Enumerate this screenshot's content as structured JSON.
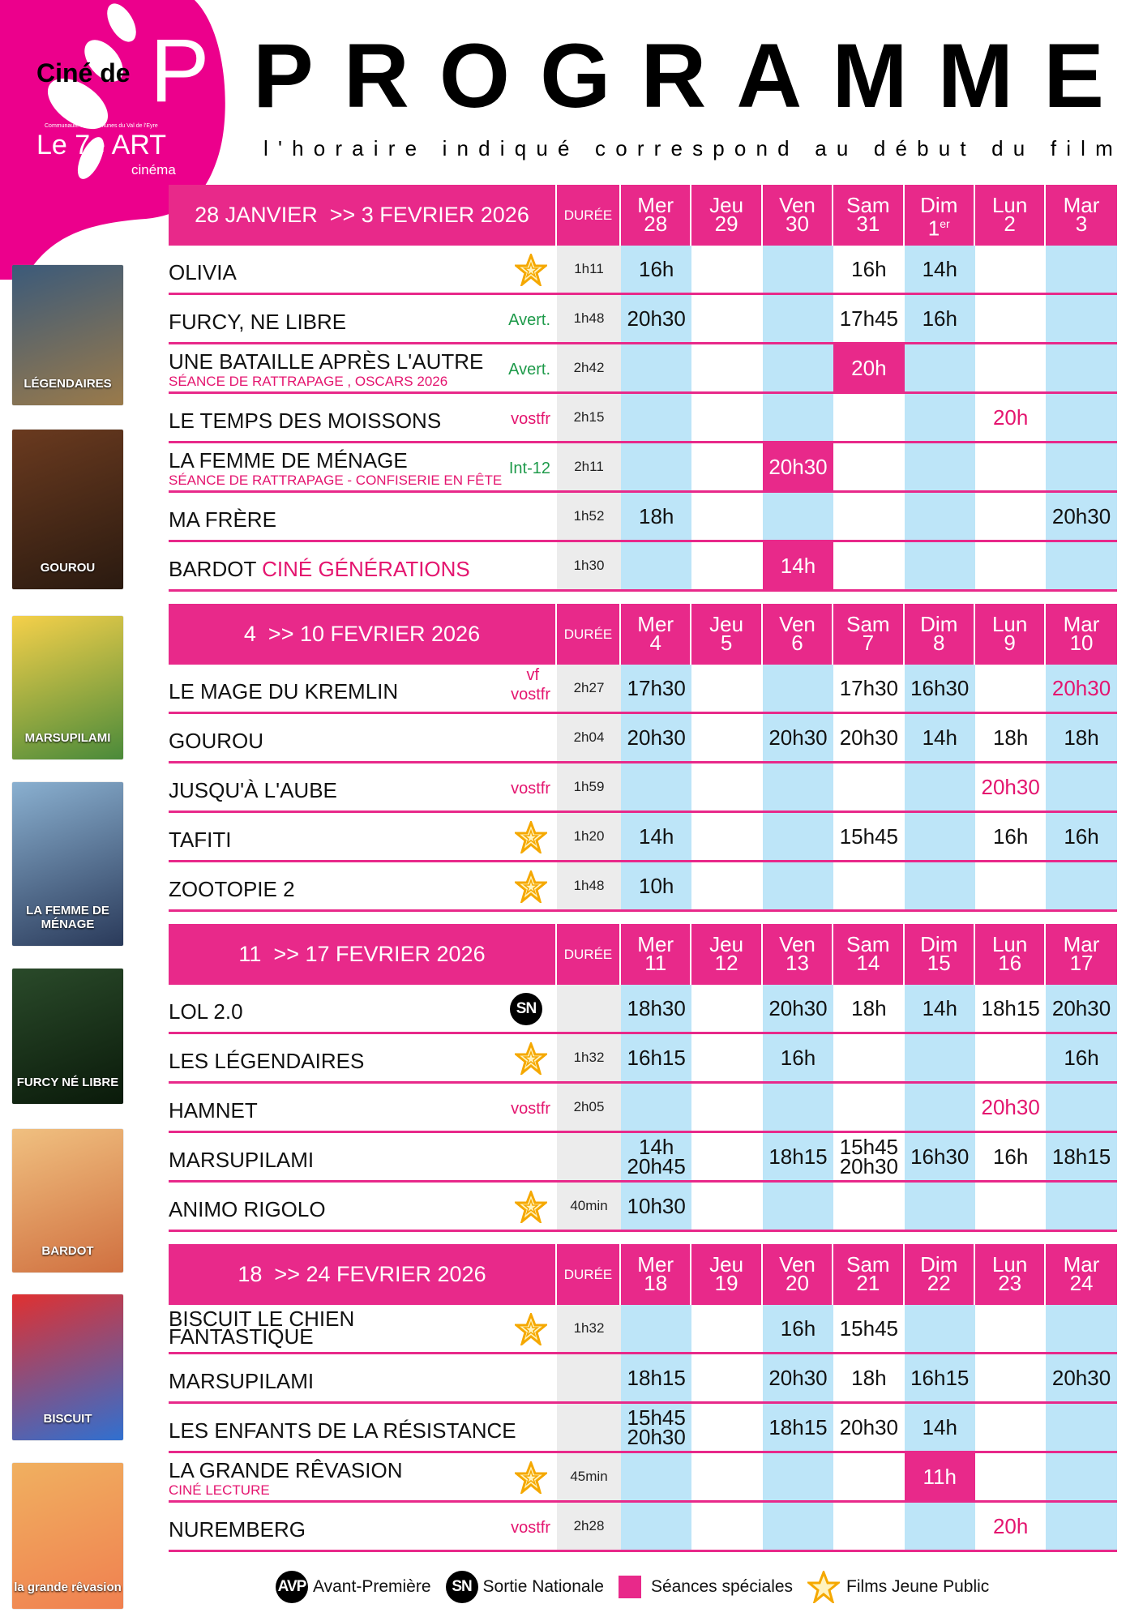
{
  "logo": {
    "line1": "Ciné de",
    "line2": "Communauté de Communes du Val de l'Eyre",
    "line3": "Le 7e ART",
    "line4": "cinéma",
    "color": "#ec008c"
  },
  "header": {
    "title": "PROGRAMME",
    "subtitle": "l'horaire indiqué correspond au début du film"
  },
  "colors": {
    "accent": "#e8298a",
    "blue_col": "#bde5f8",
    "duration_col": "#ececec",
    "green_tag": "#1e9a4a",
    "pink_text": "#e4156f",
    "star": "#f5a800"
  },
  "posters": [
    {
      "text": "LÉGENDAIRES",
      "colors": [
        "#3b5a7a",
        "#9a7a4a"
      ]
    },
    {
      "text": "GOUROU",
      "colors": [
        "#6a3a1f",
        "#2a1a10"
      ]
    },
    {
      "text": "MARSUPILAMI",
      "colors": [
        "#f5d04a",
        "#4a8a3a"
      ]
    },
    {
      "text": "LA FEMME DE MÉNAGE",
      "colors": [
        "#8ab0d0",
        "#2a3a5a"
      ]
    },
    {
      "text": "FURCY NÉ LIBRE",
      "colors": [
        "#2a4a2a",
        "#0a1a0a"
      ]
    },
    {
      "text": "BARDOT",
      "colors": [
        "#f0c080",
        "#d07040"
      ]
    },
    {
      "text": "BISCUIT",
      "colors": [
        "#e03030",
        "#3070d0"
      ]
    },
    {
      "text": "la grande rêvasion",
      "colors": [
        "#f0b060",
        "#f08050"
      ]
    }
  ],
  "weeks": [
    {
      "title": "28 JANVIER  >> 3 FEVRIER 2026",
      "duree_label": "DURÉE",
      "days": [
        {
          "name": "Mer",
          "num": "28"
        },
        {
          "name": "Jeu",
          "num": "29"
        },
        {
          "name": "Ven",
          "num": "30"
        },
        {
          "name": "Sam",
          "num": "31"
        },
        {
          "name": "Dim",
          "num": "1",
          "sup": "er"
        },
        {
          "name": "Lun",
          "num": "2"
        },
        {
          "name": "Mar",
          "num": "3"
        }
      ],
      "films": [
        {
          "title": "OLIVIA",
          "icon": "star",
          "duree": "1h11",
          "times": [
            "16h",
            "",
            "",
            "16h",
            "14h",
            "",
            ""
          ]
        },
        {
          "title": "FURCY, NE LIBRE",
          "tag": "Avert.",
          "tag_type": "green",
          "duree": "1h48",
          "times": [
            "20h30",
            "",
            "",
            "17h45",
            "16h",
            "",
            ""
          ]
        },
        {
          "title": "UNE BATAILLE APRÈS L'AUTRE",
          "subtitle": "SÉANCE DE RATTRAPAGE , OSCARS 2026",
          "tag": "Avert.",
          "tag_type": "green",
          "duree": "2h42",
          "times": [
            "",
            "",
            "",
            {
              "t": "20h",
              "s": "sp"
            },
            "",
            "",
            ""
          ]
        },
        {
          "title": "LE TEMPS DES MOISSONS",
          "tag": "vostfr",
          "tag_type": "pink",
          "duree": "2h15",
          "times": [
            "",
            "",
            "",
            "",
            "",
            {
              "t": "20h",
              "s": "pk"
            },
            ""
          ]
        },
        {
          "title": "LA FEMME DE MÉNAGE",
          "subtitle": "SÉANCE DE RATTRAPAGE - CONFISERIE EN FÊTE",
          "tag": "Int-12",
          "tag_type": "green",
          "duree": "2h11",
          "times": [
            "",
            "",
            {
              "t": "20h30",
              "s": "sp"
            },
            "",
            "",
            "",
            ""
          ]
        },
        {
          "title": "MA FRÈRE",
          "duree": "1h52",
          "times": [
            "18h",
            "",
            "",
            "",
            "",
            "",
            "20h30"
          ]
        },
        {
          "title": "BARDOT",
          "title_extra": "CINÉ GÉNÉRATIONS",
          "duree": "1h30",
          "times": [
            "",
            "",
            {
              "t": "14h",
              "s": "sp"
            },
            "",
            "",
            "",
            ""
          ]
        }
      ]
    },
    {
      "title": "4  >> 10 FEVRIER 2026",
      "duree_label": "DURÉE",
      "days": [
        {
          "name": "Mer",
          "num": "4"
        },
        {
          "name": "Jeu",
          "num": "5"
        },
        {
          "name": "Ven",
          "num": "6"
        },
        {
          "name": "Sam",
          "num": "7"
        },
        {
          "name": "Dim",
          "num": "8"
        },
        {
          "name": "Lun",
          "num": "9"
        },
        {
          "name": "Mar",
          "num": "10"
        }
      ],
      "films": [
        {
          "title": "LE MAGE DU KREMLIN",
          "tag": "vf",
          "tag2": "vostfr",
          "tag_type": "pink",
          "duree": "2h27",
          "times": [
            "17h30",
            "",
            "",
            "17h30",
            "16h30",
            "",
            {
              "t": "20h30",
              "s": "pk"
            }
          ]
        },
        {
          "title": "GOUROU",
          "duree": "2h04",
          "times": [
            "20h30",
            "",
            "20h30",
            "20h30",
            "14h",
            "18h",
            "18h"
          ]
        },
        {
          "title": "JUSQU'À L'AUBE",
          "tag": "vostfr",
          "tag_type": "pink",
          "duree": "1h59",
          "times": [
            "",
            "",
            "",
            "",
            "",
            {
              "t": "20h30",
              "s": "pk"
            },
            ""
          ]
        },
        {
          "title": "TAFITI",
          "icon": "star",
          "duree": "1h20",
          "times": [
            "14h",
            "",
            "",
            "15h45",
            "",
            "16h",
            "16h"
          ]
        },
        {
          "title": "ZOOTOPIE 2",
          "icon": "star",
          "duree": "1h48",
          "times": [
            "10h",
            "",
            "",
            "",
            "",
            "",
            ""
          ]
        }
      ]
    },
    {
      "title": "11  >> 17 FEVRIER 2026",
      "duree_label": "DURÉE",
      "days": [
        {
          "name": "Mer",
          "num": "11"
        },
        {
          "name": "Jeu",
          "num": "12"
        },
        {
          "name": "Ven",
          "num": "13"
        },
        {
          "name": "Sam",
          "num": "14"
        },
        {
          "name": "Dim",
          "num": "15"
        },
        {
          "name": "Lun",
          "num": "16"
        },
        {
          "name": "Mar",
          "num": "17"
        }
      ],
      "films": [
        {
          "title": "LOL 2.0",
          "icon": "sn",
          "duree": "",
          "times": [
            "18h30",
            "",
            "20h30",
            "18h",
            "14h",
            "18h15",
            "20h30"
          ]
        },
        {
          "title": "LES LÉGENDAIRES",
          "icon": "star",
          "duree": "1h32",
          "times": [
            "16h15",
            "",
            "16h",
            "",
            "",
            "",
            "16h"
          ]
        },
        {
          "title": "HAMNET",
          "tag": "vostfr",
          "tag_type": "pink",
          "duree": "2h05",
          "times": [
            "",
            "",
            "",
            "",
            "",
            {
              "t": "20h30",
              "s": "pk"
            },
            ""
          ]
        },
        {
          "title": "MARSUPILAMI",
          "duree": "",
          "times": [
            [
              "14h",
              "20h45"
            ],
            "",
            "18h15",
            [
              "15h45",
              "20h30"
            ],
            "16h30",
            "16h",
            "18h15"
          ]
        },
        {
          "title": "ANIMO RIGOLO",
          "icon": "star",
          "duree": "40min",
          "times": [
            "10h30",
            "",
            "",
            "",
            "",
            "",
            ""
          ]
        }
      ]
    },
    {
      "title": "18  >> 24 FEVRIER 2026",
      "duree_label": "DURÉE",
      "days": [
        {
          "name": "Mer",
          "num": "18"
        },
        {
          "name": "Jeu",
          "num": "19"
        },
        {
          "name": "Ven",
          "num": "20"
        },
        {
          "name": "Sam",
          "num": "21"
        },
        {
          "name": "Dim",
          "num": "22"
        },
        {
          "name": "Lun",
          "num": "23"
        },
        {
          "name": "Mar",
          "num": "24"
        }
      ],
      "films": [
        {
          "title": "BISCUIT LE CHIEN",
          "title2": "FANTASTIQUE",
          "icon": "star",
          "duree": "1h32",
          "times": [
            "",
            "",
            "16h",
            "15h45",
            "",
            "",
            ""
          ]
        },
        {
          "title": "MARSUPILAMI",
          "duree": "",
          "times": [
            "18h15",
            "",
            "20h30",
            "18h",
            "16h15",
            "",
            "20h30"
          ]
        },
        {
          "title": "LES ENFANTS DE LA RÉSISTANCE",
          "duree": "",
          "times": [
            [
              "15h45",
              "20h30"
            ],
            "",
            "18h15",
            "20h30",
            "14h",
            "",
            ""
          ]
        },
        {
          "title": "LA GRANDE RÊVASION",
          "subtitle": "CINÉ LECTURE",
          "icon": "star",
          "duree": "45min",
          "times": [
            "",
            "",
            "",
            "",
            {
              "t": "11h",
              "s": "sp"
            },
            "",
            ""
          ]
        },
        {
          "title": "NUREMBERG",
          "tag": "vostfr",
          "tag_type": "pink",
          "duree": "2h28",
          "times": [
            "",
            "",
            "",
            "",
            "",
            {
              "t": "20h",
              "s": "pk"
            },
            ""
          ]
        }
      ]
    }
  ],
  "legend": {
    "avp_badge": "AVP",
    "avp": "Avant-Première",
    "sn_badge": "SN",
    "sn": "Sortie Nationale",
    "special": "Séances spéciales",
    "jeune": "Films Jeune Public"
  }
}
